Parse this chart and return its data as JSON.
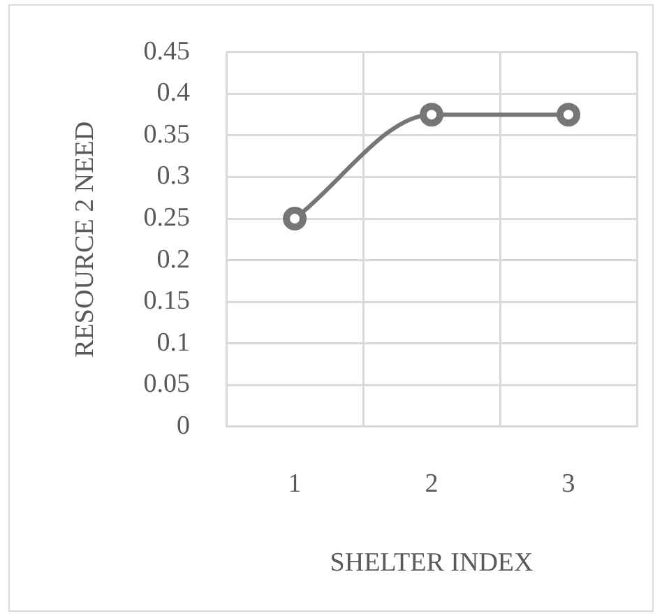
{
  "chart_data": {
    "type": "line",
    "xlabel": "SHELTER INDEX",
    "ylabel": "RESOURCE 2 NEED",
    "categories": [
      "1",
      "2",
      "3"
    ],
    "series": [
      {
        "color": "#767676",
        "values": [
          0.25,
          0.375,
          0.375
        ]
      }
    ],
    "ylim": [
      0,
      0.45
    ],
    "yticks": [
      0,
      0.05,
      0.1,
      0.15,
      0.2,
      0.25,
      0.3,
      0.35,
      0.4,
      0.45
    ],
    "grid": true,
    "legend": false,
    "marker": "circle",
    "line_style": "solid"
  }
}
